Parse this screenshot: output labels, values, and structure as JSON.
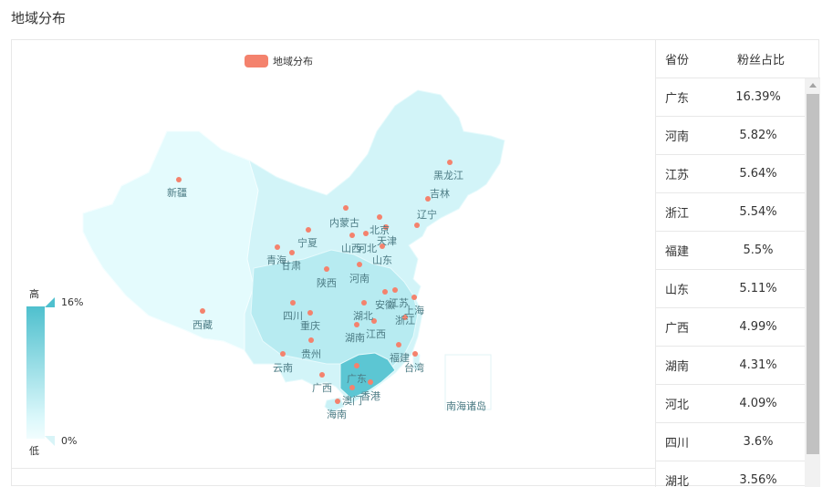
{
  "page": {
    "title": "地域分布"
  },
  "legend": {
    "label": "地域分布"
  },
  "visual_map": {
    "high_label": "高",
    "low_label": "低",
    "max_label": "16%",
    "min_label": "0%"
  },
  "table": {
    "headers": {
      "province": "省份",
      "ratio": "粉丝占比"
    },
    "rows": [
      {
        "province": "广东",
        "ratio": "16.39%"
      },
      {
        "province": "河南",
        "ratio": "5.82%"
      },
      {
        "province": "江苏",
        "ratio": "5.64%"
      },
      {
        "province": "浙江",
        "ratio": "5.54%"
      },
      {
        "province": "福建",
        "ratio": "5.5%"
      },
      {
        "province": "山东",
        "ratio": "5.11%"
      },
      {
        "province": "广西",
        "ratio": "4.99%"
      },
      {
        "province": "湖南",
        "ratio": "4.31%"
      },
      {
        "province": "河北",
        "ratio": "4.09%"
      },
      {
        "province": "四川",
        "ratio": "3.6%"
      },
      {
        "province": "湖北",
        "ratio": "3.56%"
      }
    ]
  },
  "colors": {
    "point": "#f4826d",
    "map_low": "#dcf8fb",
    "map_high": "#4fc0ce",
    "map_mid": "#bdeef3"
  },
  "chart_data": {
    "type": "map",
    "title": "",
    "series": [
      {
        "name": "地域分布"
      }
    ],
    "visual_range": [
      0,
      16
    ],
    "regions": [
      "新疆",
      "西藏",
      "青海",
      "甘肃",
      "宁夏",
      "内蒙古",
      "黑龙江",
      "吉林",
      "辽宁",
      "北京",
      "天津",
      "河北",
      "山西",
      "陕西",
      "四川",
      "重庆",
      "云南",
      "贵州",
      "广西",
      "广东",
      "海南",
      "香港",
      "澳门",
      "湖南",
      "湖北",
      "河南",
      "山东",
      "江苏",
      "安徽",
      "浙江",
      "江西",
      "福建",
      "上海",
      "台湾",
      "南海诸岛"
    ],
    "values": {
      "广东": 16.39,
      "河南": 5.82,
      "江苏": 5.64,
      "浙江": 5.54,
      "福建": 5.5,
      "山东": 5.11,
      "广西": 4.99,
      "湖南": 4.31,
      "河北": 4.09,
      "四川": 3.6,
      "湖北": 3.56
    }
  }
}
